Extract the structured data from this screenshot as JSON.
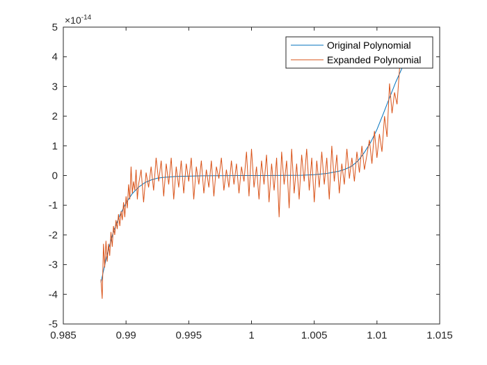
{
  "chart_data": {
    "type": "line",
    "title": "",
    "xlabel": "",
    "ylabel": "",
    "xlim": [
      0.985,
      1.015
    ],
    "ylim": [
      -5,
      5
    ],
    "y_exponent_label": "×10",
    "y_exponent_power": "-14",
    "x_ticks": [
      0.985,
      0.99,
      0.995,
      1,
      1.005,
      1.01,
      1.015
    ],
    "x_tick_labels": [
      "0.985",
      "0.99",
      "0.995",
      "1",
      "1.005",
      "1.01",
      "1.015"
    ],
    "y_ticks": [
      -5,
      -4,
      -3,
      -2,
      -1,
      0,
      1,
      2,
      3,
      4,
      5
    ],
    "y_tick_labels": [
      "-5",
      "-4",
      "-3",
      "-2",
      "-1",
      "0",
      "1",
      "2",
      "3",
      "4",
      "5"
    ],
    "grid": false,
    "legend_position": "top-right",
    "series": [
      {
        "name": "Original Polynomial",
        "color": "#0072BD",
        "x": [
          0.988,
          0.9885,
          0.989,
          0.9895,
          0.99,
          0.9905,
          0.991,
          0.9915,
          0.992,
          0.9925,
          0.993,
          0.994,
          0.995,
          0.996,
          0.997,
          0.998,
          0.999,
          1.0,
          1.001,
          1.002,
          1.003,
          1.004,
          1.005,
          1.006,
          1.007,
          1.0075,
          1.008,
          1.0085,
          1.009,
          1.0095,
          1.01,
          1.0105,
          1.011,
          1.0115,
          1.012
        ],
        "y": [
          -3.6,
          -2.64,
          -1.89,
          -1.34,
          -0.92,
          -0.61,
          -0.39,
          -0.24,
          -0.15,
          -0.09,
          -0.06,
          -0.03,
          -0.02,
          -0.01,
          -0.005,
          -0.002,
          -0.001,
          0,
          0.001,
          0.002,
          0.005,
          0.01,
          0.03,
          0.07,
          0.15,
          0.22,
          0.32,
          0.5,
          0.78,
          1.12,
          1.55,
          2.08,
          2.62,
          3.15,
          3.62
        ]
      },
      {
        "name": "Expanded Polynomial",
        "color": "#D95319",
        "x": [
          0.988,
          0.9881,
          0.9882,
          0.9883,
          0.9884,
          0.9885,
          0.9886,
          0.9887,
          0.9888,
          0.9889,
          0.989,
          0.9891,
          0.9892,
          0.9893,
          0.9894,
          0.9895,
          0.9896,
          0.9897,
          0.9898,
          0.9899,
          0.99,
          0.9901,
          0.9902,
          0.9903,
          0.9904,
          0.9905,
          0.9906,
          0.9907,
          0.9908,
          0.9909,
          0.991,
          0.9912,
          0.9914,
          0.9916,
          0.9918,
          0.992,
          0.9922,
          0.9924,
          0.9926,
          0.9928,
          0.993,
          0.9932,
          0.9934,
          0.9936,
          0.9938,
          0.994,
          0.9942,
          0.9944,
          0.9946,
          0.9948,
          0.995,
          0.9952,
          0.9954,
          0.9956,
          0.9958,
          0.996,
          0.9962,
          0.9964,
          0.9966,
          0.9968,
          0.997,
          0.9972,
          0.9974,
          0.9976,
          0.9978,
          0.998,
          0.9982,
          0.9984,
          0.9986,
          0.9988,
          0.999,
          0.9992,
          0.9994,
          0.9996,
          0.9998,
          1.0,
          1.0002,
          1.0004,
          1.0006,
          1.0008,
          1.001,
          1.0012,
          1.0014,
          1.0016,
          1.0018,
          1.002,
          1.0022,
          1.0024,
          1.0026,
          1.0028,
          1.003,
          1.0032,
          1.0034,
          1.0036,
          1.0038,
          1.004,
          1.0042,
          1.0044,
          1.0046,
          1.0048,
          1.005,
          1.0052,
          1.0054,
          1.0056,
          1.0058,
          1.006,
          1.0062,
          1.0064,
          1.0066,
          1.0068,
          1.007,
          1.0072,
          1.0074,
          1.0076,
          1.0078,
          1.008,
          1.0082,
          1.0084,
          1.0086,
          1.0088,
          1.009,
          1.0092,
          1.0094,
          1.0096,
          1.0098,
          1.01,
          1.0102,
          1.0104,
          1.0106,
          1.0108,
          1.011,
          1.0112,
          1.0114,
          1.0116,
          1.0118,
          1.012
        ],
        "y": [
          -3.5,
          -4.15,
          -2.3,
          -3.1,
          -2.2,
          -2.9,
          -2.3,
          -2.7,
          -1.9,
          -2.4,
          -1.7,
          -2.0,
          -1.5,
          -1.8,
          -1.3,
          -1.7,
          -1.2,
          -1.5,
          -0.9,
          -1.4,
          -0.7,
          -1.1,
          -0.3,
          -0.8,
          0.3,
          -0.6,
          -0.2,
          -0.5,
          0.2,
          -0.8,
          -0.3,
          0.2,
          -0.9,
          0.1,
          -0.4,
          0.3,
          -0.5,
          0.6,
          -0.2,
          0.5,
          -0.7,
          0.4,
          -0.3,
          0.6,
          -0.8,
          0.3,
          -0.4,
          0.5,
          -0.6,
          0.4,
          -0.2,
          0.6,
          -0.8,
          0.3,
          -0.3,
          0.5,
          -0.6,
          0.2,
          -0.4,
          0.5,
          -0.7,
          0.3,
          -0.1,
          0.6,
          -0.5,
          0.2,
          -0.4,
          0.5,
          -0.3,
          0.4,
          -0.6,
          0.3,
          -0.2,
          0.8,
          -0.7,
          0.9,
          -0.4,
          0.3,
          -0.8,
          0.5,
          -0.3,
          0.7,
          -0.9,
          0.4,
          -0.5,
          0.6,
          -1.4,
          0.8,
          -0.3,
          0.5,
          -1.1,
          0.9,
          -0.6,
          0.4,
          -0.8,
          0.7,
          -0.2,
          0.9,
          -0.5,
          0.6,
          -0.9,
          0.5,
          -0.4,
          0.8,
          -0.3,
          0.6,
          -0.8,
          1.0,
          -0.2,
          0.7,
          -0.6,
          0.4,
          -0.3,
          0.9,
          -0.1,
          0.6,
          -0.2,
          0.8,
          0.1,
          1.0,
          0.2,
          0.7,
          1.2,
          0.4,
          1.5,
          0.6,
          1.4,
          0.8,
          2.0,
          1.3,
          3.1,
          2.1,
          2.8,
          2.4,
          3.6,
          3.7
        ]
      }
    ]
  }
}
